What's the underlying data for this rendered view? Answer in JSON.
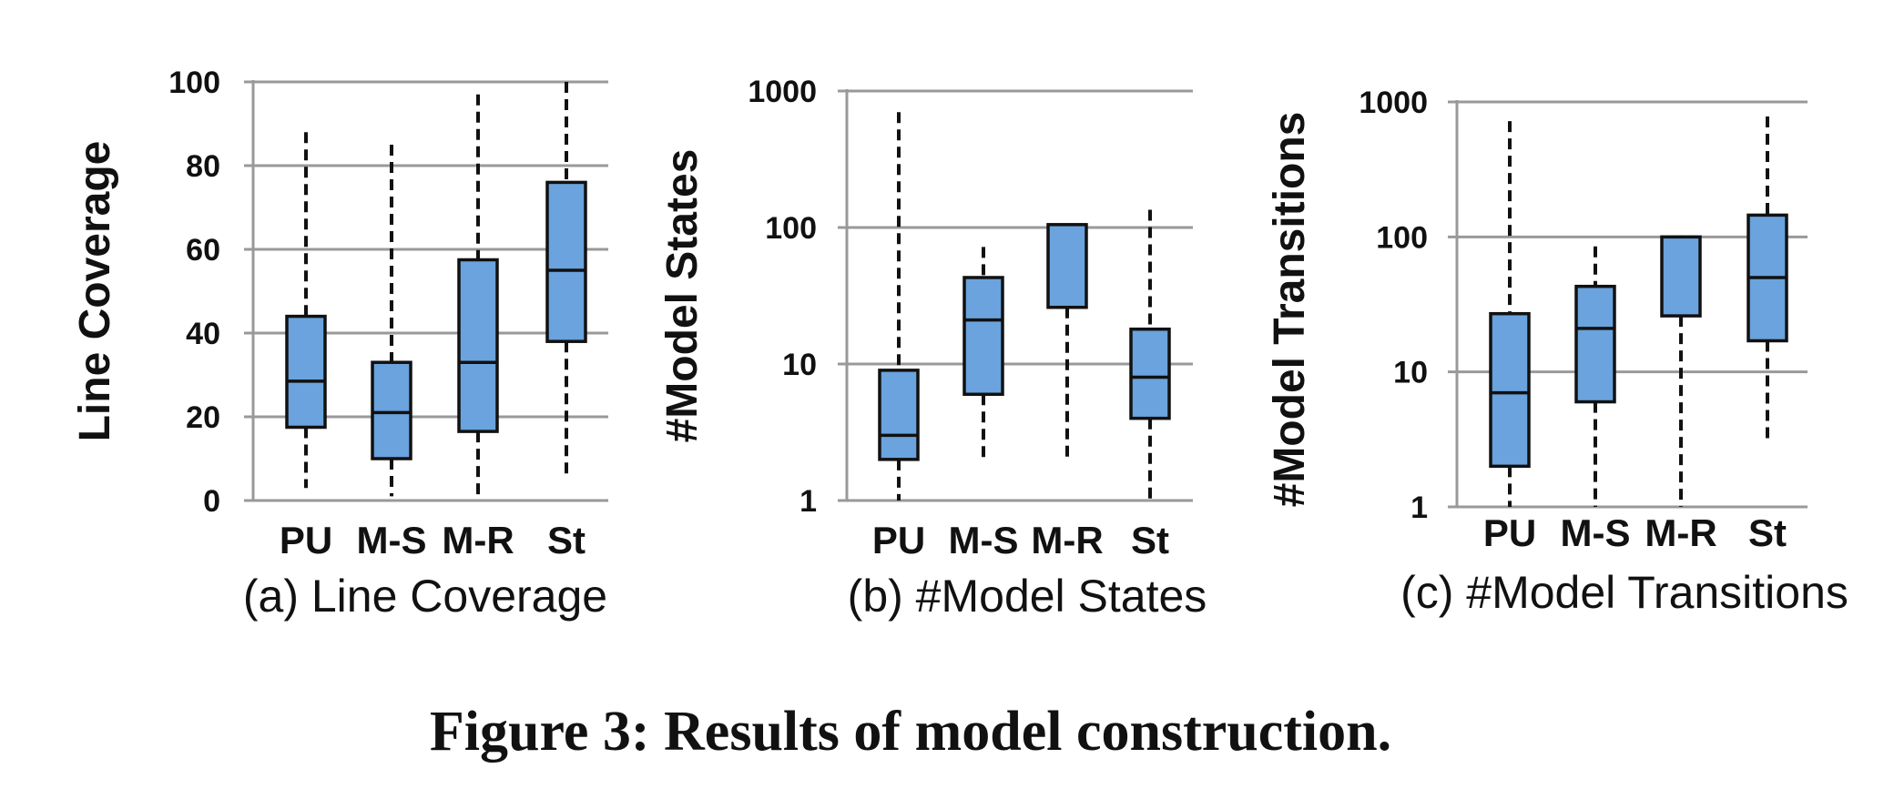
{
  "figure_caption": "Figure 3: Results of model construction.",
  "box_color": "#6aa3dd",
  "chart_data": [
    {
      "type": "box",
      "subcaption": "(a) Line Coverage",
      "ylabel": "Line Coverage",
      "scale": "linear",
      "ylim": [
        0,
        100
      ],
      "yticks": [
        0,
        20,
        40,
        60,
        80,
        100
      ],
      "ytick_labels": [
        "0",
        "20",
        "40",
        "60",
        "80",
        "100"
      ],
      "grid": true,
      "categories": [
        "PU",
        "M-S",
        "M-R",
        "St"
      ],
      "boxes": [
        {
          "category": "PU",
          "min": 3,
          "q1": 17.5,
          "median": 28.5,
          "q3": 44,
          "max": 88
        },
        {
          "category": "M-S",
          "min": 1,
          "q1": 10,
          "median": 21,
          "q3": 33,
          "max": 85
        },
        {
          "category": "M-R",
          "min": 1,
          "q1": 16.5,
          "median": 33,
          "q3": 57.5,
          "max": 97
        },
        {
          "category": "St",
          "min": 5,
          "q1": 38,
          "median": 55,
          "q3": 76,
          "max": 100
        }
      ]
    },
    {
      "type": "box",
      "subcaption": "(b) #Model States",
      "ylabel": "#Model States",
      "scale": "log",
      "ylim": [
        1,
        1000
      ],
      "yticks": [
        1,
        10,
        100,
        1000
      ],
      "ytick_labels": [
        "1",
        "10",
        "100",
        "1000"
      ],
      "grid": true,
      "categories": [
        "PU",
        "M-S",
        "M-R",
        "St"
      ],
      "boxes": [
        {
          "category": "PU",
          "min": 1,
          "q1": 2,
          "median": 3,
          "q3": 9,
          "max": 700
        },
        {
          "category": "M-S",
          "min": 2,
          "q1": 6,
          "median": 21,
          "q3": 43,
          "max": 72
        },
        {
          "category": "M-R",
          "min": 2,
          "q1": 26,
          "median": 105,
          "q3": 105,
          "max": 105
        },
        {
          "category": "St",
          "min": 1,
          "q1": 4,
          "median": 8,
          "q3": 18,
          "max": 135
        }
      ]
    },
    {
      "type": "box",
      "subcaption": "(c) #Model Transitions",
      "ylabel": "#Model Transitions",
      "scale": "log",
      "ylim": [
        1,
        1000
      ],
      "yticks": [
        1,
        10,
        100,
        1000
      ],
      "ytick_labels": [
        "1",
        "10",
        "100",
        "1000"
      ],
      "grid": true,
      "categories": [
        "PU",
        "M-S",
        "M-R",
        "St"
      ],
      "boxes": [
        {
          "category": "PU",
          "min": 1,
          "q1": 2,
          "median": 7,
          "q3": 27,
          "max": 720
        },
        {
          "category": "M-S",
          "min": 1,
          "q1": 6,
          "median": 21,
          "q3": 43,
          "max": 85
        },
        {
          "category": "M-R",
          "min": 1,
          "q1": 26,
          "median": 100,
          "q3": 100,
          "max": 100
        },
        {
          "category": "St",
          "min": 3,
          "q1": 17,
          "median": 50,
          "q3": 145,
          "max": 780
        }
      ]
    }
  ]
}
